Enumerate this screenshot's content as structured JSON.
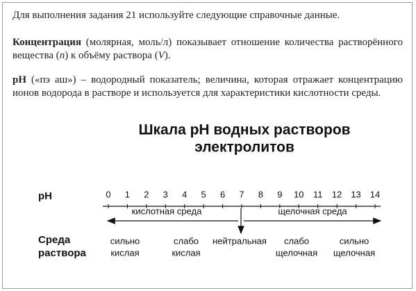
{
  "intro": "Для выполнения задания 21 используйте следующие справочные данные.",
  "concentration": {
    "term": "Концентрация",
    "text1": " (молярная, моль/л) показывает отношение количества растворённого вещества (",
    "var1": "n",
    "text2": ") к объёму раствора (",
    "var2": "V",
    "text3": ")."
  },
  "ph": {
    "term": "pH",
    "text": " («пэ аш») – водородный показатель; величина, которая отражает концентрацию ионов водорода в растворе и используется для характеристики кислотности среды."
  },
  "diagram": {
    "title": [
      "Шкала pH водных растворов",
      "электролитов"
    ],
    "scale_label": "pH",
    "scale": [
      0,
      1,
      2,
      3,
      4,
      5,
      6,
      7,
      8,
      9,
      10,
      11,
      12,
      13,
      14
    ],
    "acidic": "кислотная среда",
    "alkaline": "щелочная среда",
    "medium_label": [
      "Среда",
      "раствора"
    ],
    "media": [
      [
        "сильно",
        "кислая"
      ],
      [
        "слабо",
        "кислая"
      ],
      [
        "нейтральная"
      ],
      [
        "слабо",
        "щелочная"
      ],
      [
        "сильно",
        "щелочная"
      ]
    ]
  }
}
